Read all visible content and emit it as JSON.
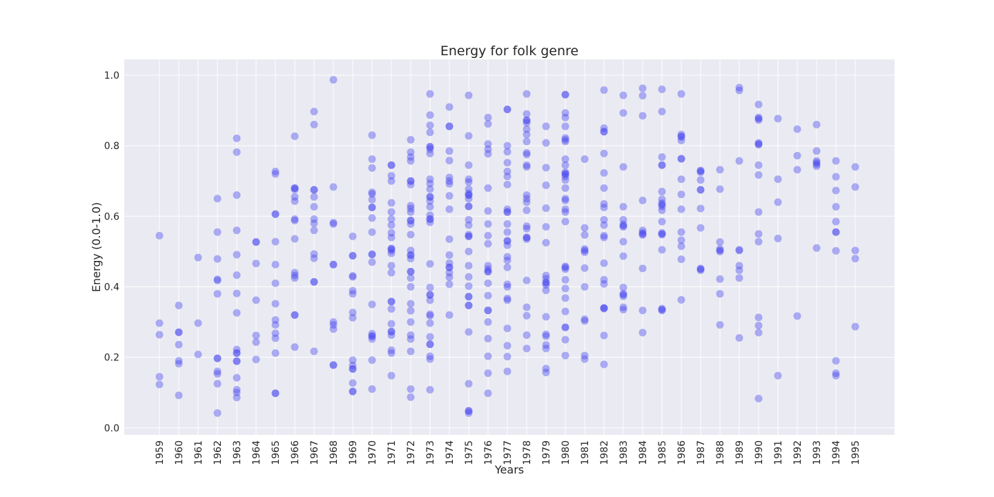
{
  "chart_data": {
    "type": "scatter",
    "title": "Energy for folk genre",
    "xlabel": "Years",
    "ylabel": "Energy (0.0-1.0)",
    "ylim": [
      -0.02,
      1.045
    ],
    "yticks": [
      "0.0",
      "0.2",
      "0.4",
      "0.6",
      "0.8",
      "1.0"
    ],
    "ytick_values": [
      0.0,
      0.2,
      0.4,
      0.6,
      0.8,
      1.0
    ],
    "categories": [
      "1959",
      "1960",
      "1961",
      "1962",
      "1963",
      "1964",
      "1965",
      "1966",
      "1967",
      "1968",
      "1969",
      "1970",
      "1971",
      "1972",
      "1973",
      "1974",
      "1975",
      "1976",
      "1977",
      "1978",
      "1979",
      "1980",
      "1981",
      "1982",
      "1983",
      "1984",
      "1985",
      "1986",
      "1987",
      "1988",
      "1989",
      "1990",
      "1991",
      "1992",
      "1993",
      "1994",
      "1995"
    ],
    "grid": true,
    "background": "#eaeaf2",
    "grid_color": "#ffffff",
    "marker_color": "#4343f0",
    "marker_opacity": 0.4,
    "points": [
      {
        "year": "1959",
        "values": [
          0.545,
          0.297,
          0.264,
          0.145,
          0.123
        ]
      },
      {
        "year": "1960",
        "values": [
          0.347,
          0.271,
          0.236,
          0.19,
          0.182,
          0.092,
          0.271
        ]
      },
      {
        "year": "1961",
        "values": [
          0.483,
          0.297,
          0.208
        ]
      },
      {
        "year": "1962",
        "values": [
          0.65,
          0.555,
          0.479,
          0.421,
          0.418,
          0.38,
          0.197,
          0.16,
          0.153,
          0.125,
          0.042,
          0.197
        ]
      },
      {
        "year": "1963",
        "values": [
          0.821,
          0.782,
          0.66,
          0.56,
          0.491,
          0.433,
          0.381,
          0.326,
          0.222,
          0.212,
          0.189,
          0.142,
          0.108,
          0.1,
          0.086,
          0.189,
          0.212
        ]
      },
      {
        "year": "1964",
        "values": [
          0.527,
          0.466,
          0.362,
          0.262,
          0.243,
          0.194,
          0.527
        ]
      },
      {
        "year": "1965",
        "values": [
          0.727,
          0.72,
          0.606,
          0.528,
          0.463,
          0.41,
          0.352,
          0.306,
          0.292,
          0.268,
          0.254,
          0.212,
          0.098,
          0.606,
          0.098
        ]
      },
      {
        "year": "1966",
        "values": [
          0.827,
          0.68,
          0.676,
          0.655,
          0.643,
          0.592,
          0.588,
          0.536,
          0.44,
          0.432,
          0.425,
          0.32,
          0.229,
          0.68,
          0.32
        ]
      },
      {
        "year": "1967",
        "values": [
          0.897,
          0.86,
          0.675,
          0.655,
          0.627,
          0.592,
          0.58,
          0.56,
          0.493,
          0.481,
          0.414,
          0.217,
          0.675,
          0.414
        ]
      },
      {
        "year": "1968",
        "values": [
          0.987,
          0.683,
          0.582,
          0.578,
          0.463,
          0.3,
          0.292,
          0.28,
          0.178,
          0.463,
          0.178
        ]
      },
      {
        "year": "1969",
        "values": [
          0.543,
          0.488,
          0.431,
          0.428,
          0.389,
          0.38,
          0.327,
          0.312,
          0.192,
          0.177,
          0.167,
          0.127,
          0.103,
          0.488,
          0.167,
          0.103
        ]
      },
      {
        "year": "1970",
        "values": [
          0.83,
          0.762,
          0.737,
          0.668,
          0.663,
          0.647,
          0.625,
          0.595,
          0.555,
          0.492,
          0.47,
          0.35,
          0.267,
          0.26,
          0.252,
          0.192,
          0.11,
          0.625,
          0.492,
          0.26
        ]
      },
      {
        "year": "1971",
        "values": [
          0.745,
          0.715,
          0.7,
          0.638,
          0.612,
          0.592,
          0.575,
          0.553,
          0.54,
          0.508,
          0.503,
          0.495,
          0.46,
          0.44,
          0.358,
          0.337,
          0.295,
          0.273,
          0.263,
          0.22,
          0.212,
          0.148,
          0.745,
          0.508,
          0.358,
          0.273
        ]
      },
      {
        "year": "1972",
        "values": [
          0.817,
          0.782,
          0.768,
          0.757,
          0.7,
          0.69,
          0.63,
          0.622,
          0.612,
          0.588,
          0.578,
          0.548,
          0.503,
          0.49,
          0.48,
          0.443,
          0.425,
          0.4,
          0.352,
          0.332,
          0.3,
          0.263,
          0.252,
          0.217,
          0.11,
          0.087,
          0.7,
          0.588,
          0.49,
          0.443
        ]
      },
      {
        "year": "1973",
        "values": [
          0.947,
          0.887,
          0.858,
          0.838,
          0.797,
          0.79,
          0.778,
          0.705,
          0.693,
          0.677,
          0.655,
          0.643,
          0.627,
          0.603,
          0.592,
          0.583,
          0.465,
          0.398,
          0.377,
          0.362,
          0.322,
          0.318,
          0.297,
          0.258,
          0.237,
          0.203,
          0.195,
          0.108,
          0.797,
          0.655,
          0.592,
          0.377,
          0.237
        ]
      },
      {
        "year": "1974",
        "values": [
          0.91,
          0.855,
          0.785,
          0.758,
          0.71,
          0.7,
          0.692,
          0.658,
          0.62,
          0.535,
          0.49,
          0.467,
          0.455,
          0.44,
          0.427,
          0.407,
          0.32,
          0.855,
          0.455
        ]
      },
      {
        "year": "1975",
        "values": [
          0.943,
          0.828,
          0.745,
          0.705,
          0.697,
          0.677,
          0.665,
          0.66,
          0.65,
          0.628,
          0.59,
          0.575,
          0.548,
          0.543,
          0.5,
          0.46,
          0.428,
          0.402,
          0.372,
          0.347,
          0.272,
          0.125,
          0.048,
          0.042,
          0.66,
          0.628,
          0.543,
          0.372,
          0.347,
          0.048
        ]
      },
      {
        "year": "1976",
        "values": [
          0.88,
          0.862,
          0.805,
          0.79,
          0.777,
          0.68,
          0.615,
          0.578,
          0.545,
          0.522,
          0.46,
          0.45,
          0.443,
          0.41,
          0.375,
          0.333,
          0.3,
          0.253,
          0.203,
          0.155,
          0.098,
          0.443,
          0.333
        ]
      },
      {
        "year": "1977",
        "values": [
          0.903,
          0.8,
          0.783,
          0.752,
          0.727,
          0.713,
          0.69,
          0.62,
          0.612,
          0.578,
          0.555,
          0.53,
          0.518,
          0.485,
          0.475,
          0.455,
          0.407,
          0.4,
          0.367,
          0.362,
          0.282,
          0.233,
          0.202,
          0.16,
          0.903,
          0.612,
          0.53
        ]
      },
      {
        "year": "1978",
        "values": [
          0.947,
          0.89,
          0.872,
          0.865,
          0.847,
          0.832,
          0.812,
          0.78,
          0.775,
          0.745,
          0.74,
          0.66,
          0.65,
          0.64,
          0.617,
          0.572,
          0.565,
          0.54,
          0.535,
          0.418,
          0.342,
          0.318,
          0.263,
          0.225,
          0.872,
          0.54
        ]
      },
      {
        "year": "1979",
        "values": [
          0.855,
          0.808,
          0.738,
          0.688,
          0.623,
          0.57,
          0.525,
          0.432,
          0.423,
          0.412,
          0.405,
          0.39,
          0.315,
          0.265,
          0.26,
          0.235,
          0.225,
          0.168,
          0.157,
          0.412
        ]
      },
      {
        "year": "1980",
        "values": [
          0.945,
          0.893,
          0.88,
          0.855,
          0.822,
          0.812,
          0.762,
          0.745,
          0.725,
          0.72,
          0.713,
          0.703,
          0.68,
          0.65,
          0.645,
          0.62,
          0.612,
          0.585,
          0.458,
          0.45,
          0.42,
          0.395,
          0.368,
          0.33,
          0.285,
          0.25,
          0.205,
          0.945,
          0.817,
          0.72,
          0.455,
          0.285
        ]
      },
      {
        "year": "1981",
        "values": [
          0.762,
          0.567,
          0.547,
          0.507,
          0.498,
          0.453,
          0.4,
          0.308,
          0.303,
          0.205,
          0.195,
          0.503
        ]
      },
      {
        "year": "1982",
        "values": [
          0.958,
          0.85,
          0.84,
          0.778,
          0.723,
          0.68,
          0.635,
          0.625,
          0.59,
          0.575,
          0.545,
          0.54,
          0.467,
          0.42,
          0.408,
          0.34,
          0.338,
          0.262,
          0.18,
          0.84,
          0.34
        ]
      },
      {
        "year": "1983",
        "values": [
          0.943,
          0.893,
          0.74,
          0.627,
          0.59,
          0.577,
          0.57,
          0.528,
          0.487,
          0.398,
          0.38,
          0.373,
          0.342,
          0.335,
          0.573,
          0.378
        ]
      },
      {
        "year": "1984",
        "values": [
          0.963,
          0.942,
          0.885,
          0.645,
          0.56,
          0.553,
          0.547,
          0.452,
          0.333,
          0.27,
          0.55
        ]
      },
      {
        "year": "1985",
        "values": [
          0.96,
          0.897,
          0.768,
          0.745,
          0.67,
          0.648,
          0.637,
          0.628,
          0.617,
          0.585,
          0.553,
          0.548,
          0.505,
          0.338,
          0.333,
          0.745,
          0.633,
          0.55,
          0.335
        ]
      },
      {
        "year": "1986",
        "values": [
          0.947,
          0.832,
          0.827,
          0.815,
          0.763,
          0.705,
          0.662,
          0.62,
          0.555,
          0.532,
          0.515,
          0.478,
          0.363,
          0.825,
          0.763
        ]
      },
      {
        "year": "1987",
        "values": [
          0.73,
          0.725,
          0.703,
          0.675,
          0.622,
          0.567,
          0.452,
          0.447,
          0.728,
          0.675,
          0.45
        ]
      },
      {
        "year": "1988",
        "values": [
          0.732,
          0.677,
          0.527,
          0.507,
          0.5,
          0.422,
          0.38,
          0.292,
          0.503
        ]
      },
      {
        "year": "1989",
        "values": [
          0.965,
          0.957,
          0.757,
          0.505,
          0.46,
          0.447,
          0.425,
          0.255,
          0.503
        ]
      },
      {
        "year": "1990",
        "values": [
          0.917,
          0.88,
          0.873,
          0.808,
          0.803,
          0.745,
          0.717,
          0.612,
          0.55,
          0.528,
          0.313,
          0.29,
          0.27,
          0.083,
          0.877,
          0.805
        ]
      },
      {
        "year": "1991",
        "values": [
          0.877,
          0.705,
          0.64,
          0.537,
          0.148
        ]
      },
      {
        "year": "1992",
        "values": [
          0.847,
          0.772,
          0.732,
          0.317
        ]
      },
      {
        "year": "1993",
        "values": [
          0.86,
          0.785,
          0.757,
          0.748,
          0.742,
          0.51,
          0.752
        ]
      },
      {
        "year": "1994",
        "values": [
          0.757,
          0.712,
          0.673,
          0.627,
          0.585,
          0.555,
          0.502,
          0.19,
          0.155,
          0.148,
          0.555
        ]
      },
      {
        "year": "1995",
        "values": [
          0.74,
          0.683,
          0.503,
          0.48,
          0.287
        ]
      }
    ]
  }
}
